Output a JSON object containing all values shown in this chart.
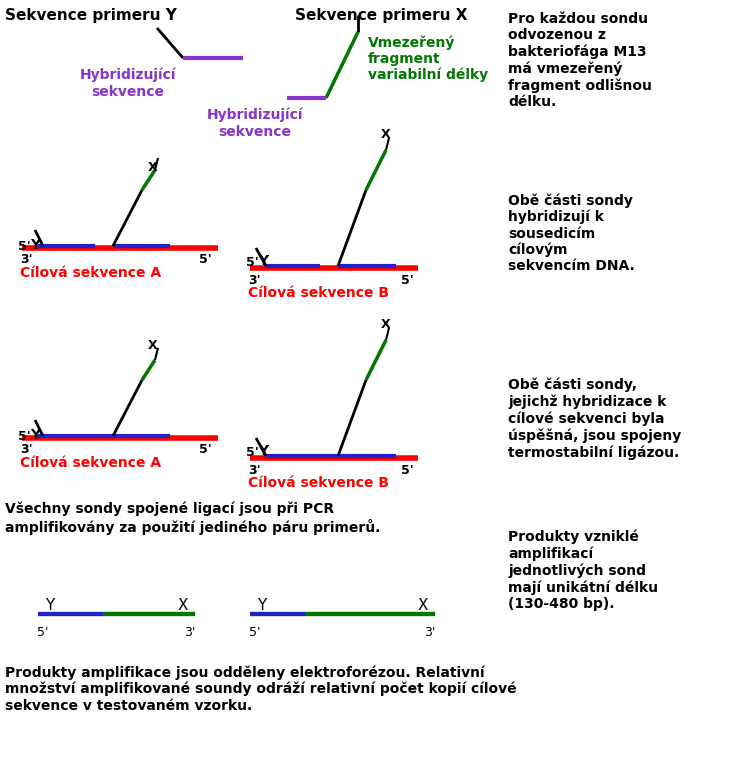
{
  "bg_color": "#ffffff",
  "red_color": "#ff0000",
  "blue_color": "#2222cc",
  "purple_color": "#8833cc",
  "green_color": "#007700",
  "black_color": "#000000",
  "text1": "Sekvence primeru Y",
  "text2": "Sekvence primeru X",
  "vmezeren": "Vmezeřený\nfragment\nvariabilní délky",
  "hybrid1": "Hybridizující\nsekvence",
  "hybrid2": "Hybridizující\nsekvence",
  "cilova_A": "Cílová sekvence A",
  "cilova_B": "Cílová sekvence B",
  "right1": "Pro každou sondu\nodvozenou z\nbakteriofága M13\nmá vmezeřený\nfragment odlišnou\ndélku.",
  "right2": "Obě části sondy\nhybridizují k\nsousedicím\ncílovým\nsekvencím DNA.",
  "right3": "Obě části sondy,\njejichž hybridizace k\ncílové sekvenci byla\núspěšná, jsou spojeny\ntermostabilní ligázou.",
  "pcr_text": "Všechny sondy spojené ligací jsou při PCR\namplifikovány za použití jediného páru primerů.",
  "right4": "Produkty vzniklé\namplifikací\njednotlivých sond\nmají unikátní délku\n(130-480 bp).",
  "bottom": "Produkty amplifikace jsou odděleny elektroforézou. Relativní\nmnožství amplifikované soundy odráží relativní počet kopií cílové\nsekvence v testovaném vzorku."
}
